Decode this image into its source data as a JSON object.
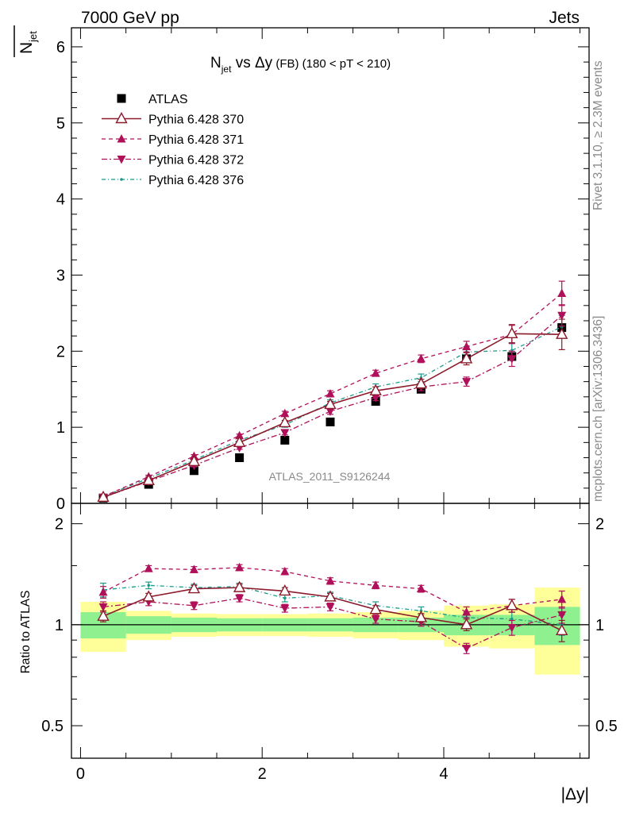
{
  "header": {
    "left": "7000 GeV pp",
    "right": "Jets"
  },
  "side_text": {
    "rivet": "Rivet 3.1.10, ≥ 2.3M events",
    "mcplots": "mcplots.cern.ch [arXiv:1306.3436]"
  },
  "colors": {
    "atlas": "#000000",
    "p370": "#8b1a2b",
    "p371": "#b0105a",
    "p372": "#b0105a",
    "p376": "#1a9a8a",
    "band_inner": "#8ef08e",
    "band_outer": "#ffff99"
  },
  "chart_data": [
    {
      "type": "scatter",
      "title_main": "N",
      "title_sub": "jet",
      "title_rest": " vs Δy",
      "title_fb": " (FB)",
      "title_range": " (180 < pT < 210)",
      "ylabel_main": "N",
      "ylabel_sub": "jet",
      "ylim": [
        0,
        6.25
      ],
      "yticks": [
        "0",
        "1",
        "2",
        "3",
        "4",
        "5",
        "6"
      ],
      "watermark": "ATLAS_2011_S9126244",
      "x": [
        0.25,
        0.75,
        1.25,
        1.75,
        2.25,
        2.75,
        3.25,
        3.75,
        4.25,
        4.75,
        5.3
      ],
      "series": [
        {
          "name": "ATLAS",
          "marker": "square",
          "values": [
            0.07,
            0.25,
            0.43,
            0.6,
            0.83,
            1.07,
            1.34,
            1.5,
            1.9,
            1.93,
            2.31
          ]
        },
        {
          "name": "Pythia 6.428 370",
          "marker": "triangle-open",
          "values": [
            0.08,
            0.3,
            0.55,
            0.8,
            1.06,
            1.3,
            1.48,
            1.57,
            1.9,
            2.23,
            2.22
          ],
          "err": [
            0.01,
            0.02,
            0.02,
            0.02,
            0.03,
            0.04,
            0.05,
            0.06,
            0.08,
            0.12,
            0.2
          ]
        },
        {
          "name": "Pythia 6.428 371",
          "marker": "triangle",
          "values": [
            0.09,
            0.35,
            0.62,
            0.89,
            1.18,
            1.44,
            1.71,
            1.9,
            2.06,
            2.22,
            2.76
          ],
          "err": [
            0.01,
            0.02,
            0.02,
            0.02,
            0.03,
            0.04,
            0.04,
            0.05,
            0.07,
            0.12,
            0.16
          ]
        },
        {
          "name": "Pythia 6.428 372",
          "marker": "triangle-down",
          "values": [
            0.08,
            0.29,
            0.5,
            0.73,
            0.93,
            1.21,
            1.39,
            1.53,
            1.6,
            1.9,
            2.47
          ],
          "err": [
            0.01,
            0.02,
            0.02,
            0.02,
            0.03,
            0.04,
            0.04,
            0.05,
            0.06,
            0.1,
            0.14
          ]
        },
        {
          "name": "Pythia 6.428 376",
          "marker": "dot",
          "values": [
            0.09,
            0.33,
            0.57,
            0.83,
            1.03,
            1.32,
            1.53,
            1.65,
            1.99,
            2.01,
            2.32
          ],
          "err": [
            0.01,
            0.02,
            0.02,
            0.02,
            0.03,
            0.04,
            0.04,
            0.05,
            0.07,
            0.1,
            0.15
          ]
        }
      ]
    },
    {
      "type": "scatter",
      "ylabel": "Ratio to ATLAS",
      "xlabel": "|Δy|",
      "ylim": [
        0.4,
        2.3
      ],
      "yticks": [
        "0.5",
        "1",
        "2"
      ],
      "xticks": [
        "0",
        "2",
        "4"
      ],
      "xlim": [
        -0.1,
        5.6
      ],
      "bands": {
        "edges": [
          0.0,
          0.5,
          1.0,
          1.5,
          2.0,
          2.5,
          3.0,
          3.5,
          4.0,
          4.5,
          5.0,
          5.5
        ],
        "inner_lo": [
          0.91,
          0.94,
          0.95,
          0.955,
          0.955,
          0.955,
          0.95,
          0.95,
          0.93,
          0.93,
          0.87
        ],
        "inner_hi": [
          1.09,
          1.06,
          1.05,
          1.045,
          1.045,
          1.045,
          1.05,
          1.05,
          1.07,
          1.07,
          1.13
        ],
        "outer_lo": [
          0.83,
          0.9,
          0.92,
          0.925,
          0.925,
          0.92,
          0.91,
          0.9,
          0.86,
          0.85,
          0.71
        ],
        "outer_hi": [
          1.17,
          1.1,
          1.08,
          1.075,
          1.075,
          1.08,
          1.09,
          1.1,
          1.14,
          1.15,
          1.29
        ]
      },
      "series": [
        {
          "name": "Pythia 6.428 370",
          "values": [
            1.06,
            1.21,
            1.28,
            1.29,
            1.26,
            1.21,
            1.11,
            1.05,
            1.0,
            1.14,
            0.96
          ],
          "err": [
            0.04,
            0.03,
            0.03,
            0.03,
            0.03,
            0.03,
            0.03,
            0.03,
            0.04,
            0.05,
            0.07
          ]
        },
        {
          "name": "Pythia 6.428 371",
          "values": [
            1.25,
            1.47,
            1.46,
            1.48,
            1.44,
            1.35,
            1.31,
            1.28,
            1.09,
            1.14,
            1.19
          ],
          "err": [
            0.05,
            0.03,
            0.03,
            0.03,
            0.03,
            0.03,
            0.03,
            0.03,
            0.04,
            0.05,
            0.07
          ]
        },
        {
          "name": "Pythia 6.428 372",
          "values": [
            1.13,
            1.17,
            1.14,
            1.2,
            1.12,
            1.13,
            1.04,
            1.02,
            0.85,
            0.98,
            1.07
          ],
          "err": [
            0.04,
            0.03,
            0.03,
            0.03,
            0.03,
            0.03,
            0.03,
            0.03,
            0.03,
            0.05,
            0.06
          ]
        },
        {
          "name": "Pythia 6.428 376",
          "values": [
            1.27,
            1.31,
            1.29,
            1.3,
            1.2,
            1.22,
            1.14,
            1.1,
            1.05,
            1.04,
            1.0
          ],
          "err": [
            0.06,
            0.03,
            0.03,
            0.03,
            0.03,
            0.03,
            0.03,
            0.03,
            0.04,
            0.05,
            0.07
          ]
        }
      ]
    }
  ]
}
